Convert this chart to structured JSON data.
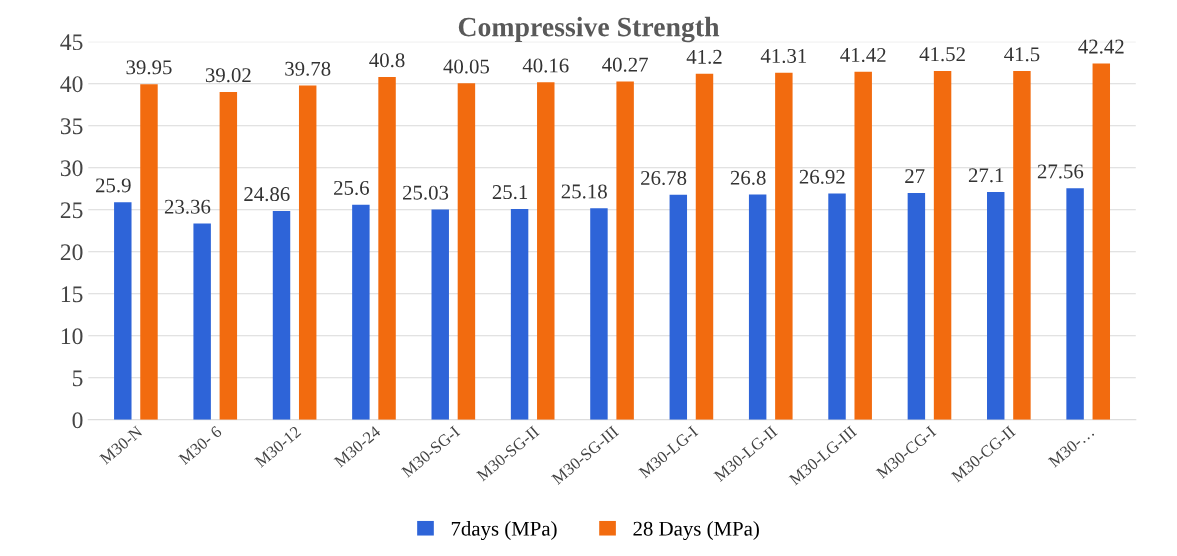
{
  "chart_data": {
    "type": "bar",
    "title": "Compressive Strength",
    "categories": [
      "M30-N",
      "M30- 6",
      "M30-12",
      "M30-24",
      "M30-SG-I",
      "M30-SG-II",
      "M30-SG-III",
      "M30-LG-I",
      "M30-LG-II",
      "M30-LG-III",
      "M30-CG-I",
      "M30-CG-II",
      "M30-…"
    ],
    "series": [
      {
        "name": "7days (MPa)",
        "color": "#2e64d8",
        "values": [
          25.9,
          23.36,
          24.86,
          25.6,
          25.03,
          25.1,
          25.18,
          26.78,
          26.8,
          26.92,
          27,
          27.1,
          27.56
        ]
      },
      {
        "name": "28 Days (MPa)",
        "color": "#f26b0f",
        "values": [
          39.95,
          39.02,
          39.78,
          40.8,
          40.05,
          40.16,
          40.27,
          41.2,
          41.31,
          41.42,
          41.52,
          41.5,
          42.42
        ]
      }
    ],
    "ylim": [
      0,
      45
    ],
    "yticks": [
      0,
      5,
      10,
      15,
      20,
      25,
      30,
      35,
      40,
      45
    ],
    "grid": "y",
    "legend": "bottom",
    "data_labels": true
  }
}
